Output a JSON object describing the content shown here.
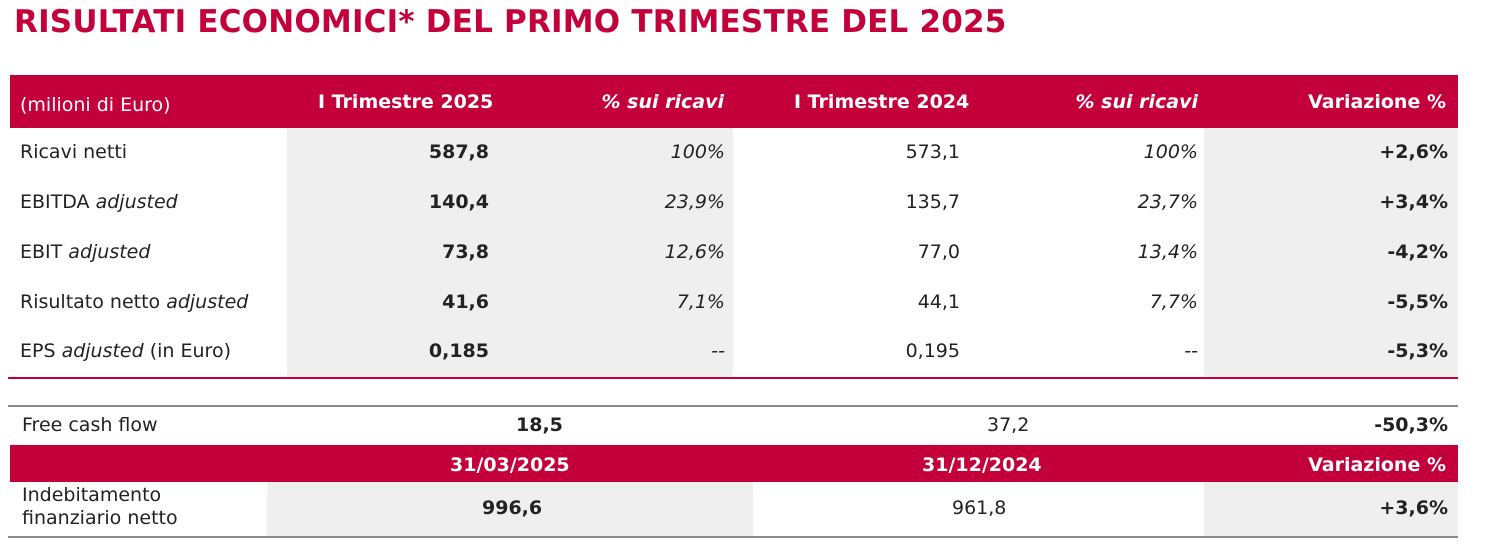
{
  "title": "RISULTATI ECONOMICI* DEL PRIMO TRIMESTRE DEL 2025",
  "table1": {
    "headers": [
      "(milioni di Euro)",
      "I Trimestre 2025",
      "% sui ricavi",
      "I Trimestre 2024",
      "% sui ricavi",
      "Variazione %"
    ],
    "rows": [
      {
        "label": "Ricavi netti",
        "label_italic": "",
        "label_suffix": "",
        "v2025": "587,8",
        "p2025": "100%",
        "v2024": "573,1",
        "p2024": "100%",
        "var": "+2,6%"
      },
      {
        "label": "EBITDA ",
        "label_italic": "adjusted",
        "label_suffix": "",
        "v2025": "140,4",
        "p2025": "23,9%",
        "v2024": "135,7",
        "p2024": "23,7%",
        "var": "+3,4%"
      },
      {
        "label": "EBIT ",
        "label_italic": "adjusted",
        "label_suffix": "",
        "v2025": "73,8",
        "p2025": "12,6%",
        "v2024": "77,0",
        "p2024": "13,4%",
        "var": "-4,2%"
      },
      {
        "label": "Risultato netto ",
        "label_italic": "adjusted",
        "label_suffix": "",
        "v2025": "41,6",
        "p2025": "7,1%",
        "v2024": "44,1",
        "p2024": "7,7%",
        "var": "-5,5%"
      },
      {
        "label": "EPS ",
        "label_italic": "adjusted",
        "label_suffix": " (in Euro)",
        "v2025": "0,185",
        "p2025": "--",
        "v2024": "0,195",
        "p2024": "--",
        "var": "-5,3%"
      }
    ]
  },
  "fcf": {
    "label": "Free cash flow",
    "v2025": "18,5",
    "v2024": "37,2",
    "var": "-50,3%"
  },
  "table2": {
    "headers": [
      "31/03/2025",
      "31/12/2024",
      "Variazione %"
    ],
    "label_line1": "Indebitamento",
    "label_line2": "finanziario netto",
    "v1": "996,6",
    "v2": "961,8",
    "var": "+3,6%"
  },
  "colors": {
    "accent": "#c4003b",
    "shade": "#efefef"
  }
}
